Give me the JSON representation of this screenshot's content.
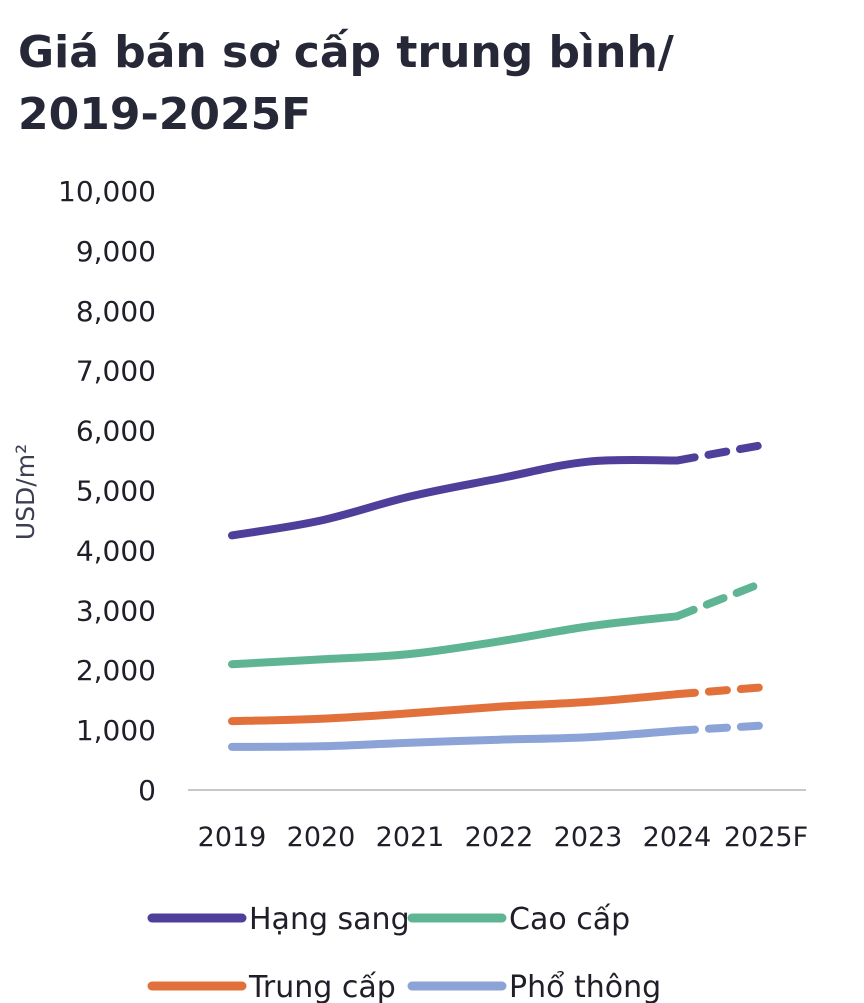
{
  "chart_data": {
    "type": "line",
    "title_lines": [
      "Giá bán sơ cấp trung bình/",
      "2019-2025F"
    ],
    "ylabel": "USD/m²",
    "xlabel": "",
    "categories": [
      "2019",
      "2020",
      "2021",
      "2022",
      "2023",
      "2024",
      "2025F"
    ],
    "ylim": [
      0,
      10000
    ],
    "yticks": [
      0,
      1000,
      2000,
      3000,
      4000,
      5000,
      6000,
      7000,
      8000,
      9000,
      10000
    ],
    "ytick_labels": [
      "0",
      "1,000",
      "2,000",
      "3,000",
      "4,000",
      "5,000",
      "6,000",
      "7,000",
      "8,000",
      "9,000",
      "10,000"
    ],
    "forecast_from_index": 5,
    "forecast_style": "dashed",
    "grid": false,
    "legend_position": "bottom",
    "series": [
      {
        "name": "Hạng sang",
        "color": "#4f3f9a",
        "values": [
          4250,
          4500,
          4900,
          5200,
          5480,
          5500,
          5770
        ]
      },
      {
        "name": "Cao cấp",
        "color": "#5fb593",
        "values": [
          2100,
          2180,
          2270,
          2480,
          2730,
          2900,
          3480
        ]
      },
      {
        "name": "Trung cấp",
        "color": "#e2703a",
        "values": [
          1150,
          1190,
          1280,
          1390,
          1470,
          1600,
          1720
        ]
      },
      {
        "name": "Phổ thông",
        "color": "#8ba3d6",
        "values": [
          720,
          730,
          790,
          840,
          880,
          990,
          1080
        ]
      }
    ]
  }
}
